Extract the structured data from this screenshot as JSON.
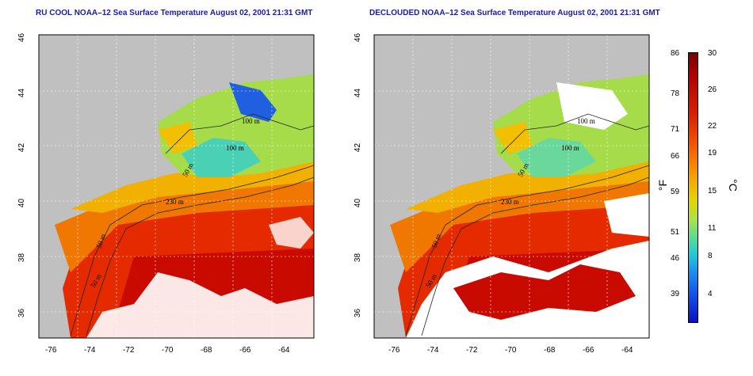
{
  "panels": [
    {
      "title": "RU COOL NOAA–12 Sea Surface Temperature August 02, 2001 21:31 GMT",
      "variant": "raw",
      "x_ticks": [
        "-76",
        "-74",
        "-72",
        "-70",
        "-68",
        "-66",
        "-64"
      ],
      "y_ticks": [
        "46",
        "44",
        "42",
        "40",
        "38",
        "36"
      ],
      "contour_labels": [
        "100 m",
        "100 m",
        "50 m",
        "230 m",
        "50 m",
        "50 m"
      ]
    },
    {
      "title": "DECLOUDED NOAA–12 Sea Surface Temperature August 02, 2001 21:31 GMT",
      "variant": "declouded",
      "x_ticks": [
        "-76",
        "-74",
        "-72",
        "-70",
        "-68",
        "-66",
        "-64"
      ],
      "y_ticks": [
        "46",
        "44",
        "42",
        "40",
        "38",
        "36"
      ],
      "contour_labels": [
        "100 m",
        "100 m",
        "50 m",
        "230 m",
        "50 m",
        "50 m"
      ]
    }
  ],
  "colorbar": {
    "fahrenheit_label": "°F",
    "celsius_label": "°C",
    "fahrenheit_ticks": [
      "86",
      "78",
      "71",
      "66",
      "59",
      "51",
      "46",
      "39"
    ],
    "celsius_ticks": [
      "30",
      "26",
      "22",
      "19",
      "15",
      "11",
      "8",
      "4"
    ]
  },
  "colors": {
    "land": "#c0c0c0",
    "cloud": "#ffffff",
    "title": "#1a1aa8",
    "warm": "#e01800",
    "hot": "#c20000",
    "mid": "#f58a00",
    "cool": "#f2d000",
    "cold": "#34c8b0"
  }
}
